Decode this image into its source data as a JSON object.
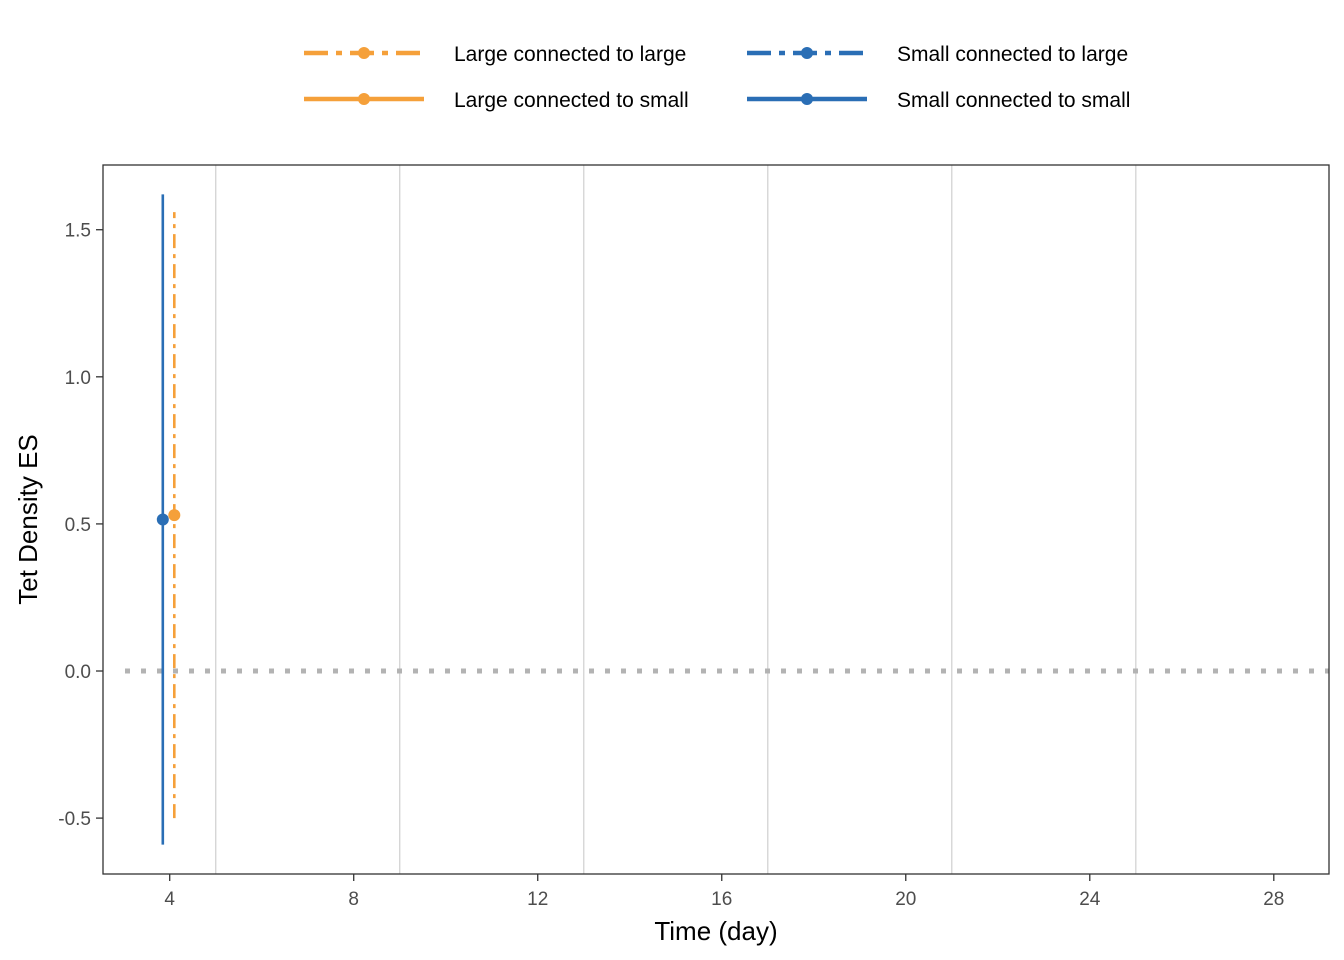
{
  "chart_data": {
    "type": "line",
    "xlabel": "Time (day)",
    "ylabel": "Tet Density ES",
    "xlim": [
      2.55,
      29.2
    ],
    "ylim": [
      -0.69,
      1.72
    ],
    "x_ticks": [
      4,
      8,
      12,
      16,
      20,
      24,
      28
    ],
    "x_tick_labels": [
      "4",
      "8",
      "12",
      "16",
      "20",
      "24",
      "28"
    ],
    "y_ticks": [
      -0.5,
      0.0,
      0.5,
      1.0,
      1.5
    ],
    "y_tick_labels": [
      "-0.5",
      "0.0",
      "0.5",
      "1.0",
      "1.5"
    ],
    "vertical_gridlines_x": [
      5,
      9,
      13,
      17,
      21,
      25
    ],
    "reference_line": {
      "y": 0.0,
      "style": "dotted",
      "color": "#b3b3b3"
    },
    "legend_position": "top",
    "series": [
      {
        "name": "Large connected to large",
        "color": "#F5A03A",
        "linetype": "dashdot",
        "points": []
      },
      {
        "name": "Large connected to small",
        "color": "#F5A03A",
        "linetype": "solid",
        "points": [
          {
            "x": 4.1,
            "y": 0.53,
            "ymin": -0.5,
            "ymax": 1.56
          }
        ]
      },
      {
        "name": "Small connected to large",
        "color": "#2A6EB5",
        "linetype": "dashdot",
        "points": []
      },
      {
        "name": "Small connected to small",
        "color": "#2A6EB5",
        "linetype": "solid",
        "points": [
          {
            "x": 3.85,
            "y": 0.515,
            "ymin": -0.59,
            "ymax": 1.62
          }
        ]
      }
    ]
  }
}
